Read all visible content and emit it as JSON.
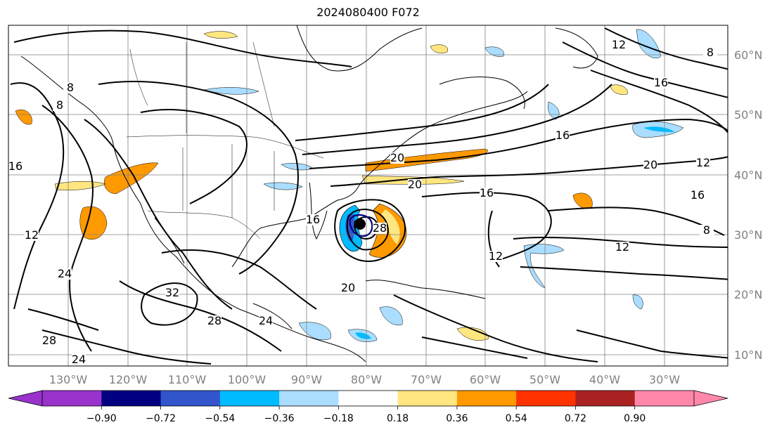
{
  "title": "2024080400 F072",
  "map": {
    "type": "contour-map",
    "lon_labels": [
      "130°W",
      "120°W",
      "110°W",
      "100°W",
      "90°W",
      "80°W",
      "70°W",
      "60°W",
      "50°W",
      "40°W",
      "30°W"
    ],
    "lat_labels": [
      "60°N",
      "50°N",
      "40°N",
      "30°N",
      "20°N",
      "10°N"
    ],
    "contour_labels": [
      "8",
      "8",
      "16",
      "12",
      "24",
      "32",
      "28",
      "24",
      "28",
      "24",
      "20",
      "20",
      "20",
      "16",
      "16",
      "16",
      "12",
      "12",
      "12",
      "12",
      "8",
      "28",
      "16",
      "20",
      "16",
      "8"
    ],
    "storm_marker": "tropical-cyclone-center"
  },
  "colorbar": {
    "tick_labels": [
      "−0.90",
      "−0.72",
      "−0.54",
      "−0.36",
      "−0.18",
      "0.18",
      "0.36",
      "0.54",
      "0.72",
      "0.90"
    ],
    "colors": [
      "#9933cc",
      "#000080",
      "#3355cc",
      "#00bbff",
      "#aaddff",
      "#ffffff",
      "#ffe680",
      "#ff9900",
      "#ff3300",
      "#aa2222",
      "#ff88aa"
    ],
    "under_color": "#9933cc",
    "over_color": "#ff88aa"
  }
}
